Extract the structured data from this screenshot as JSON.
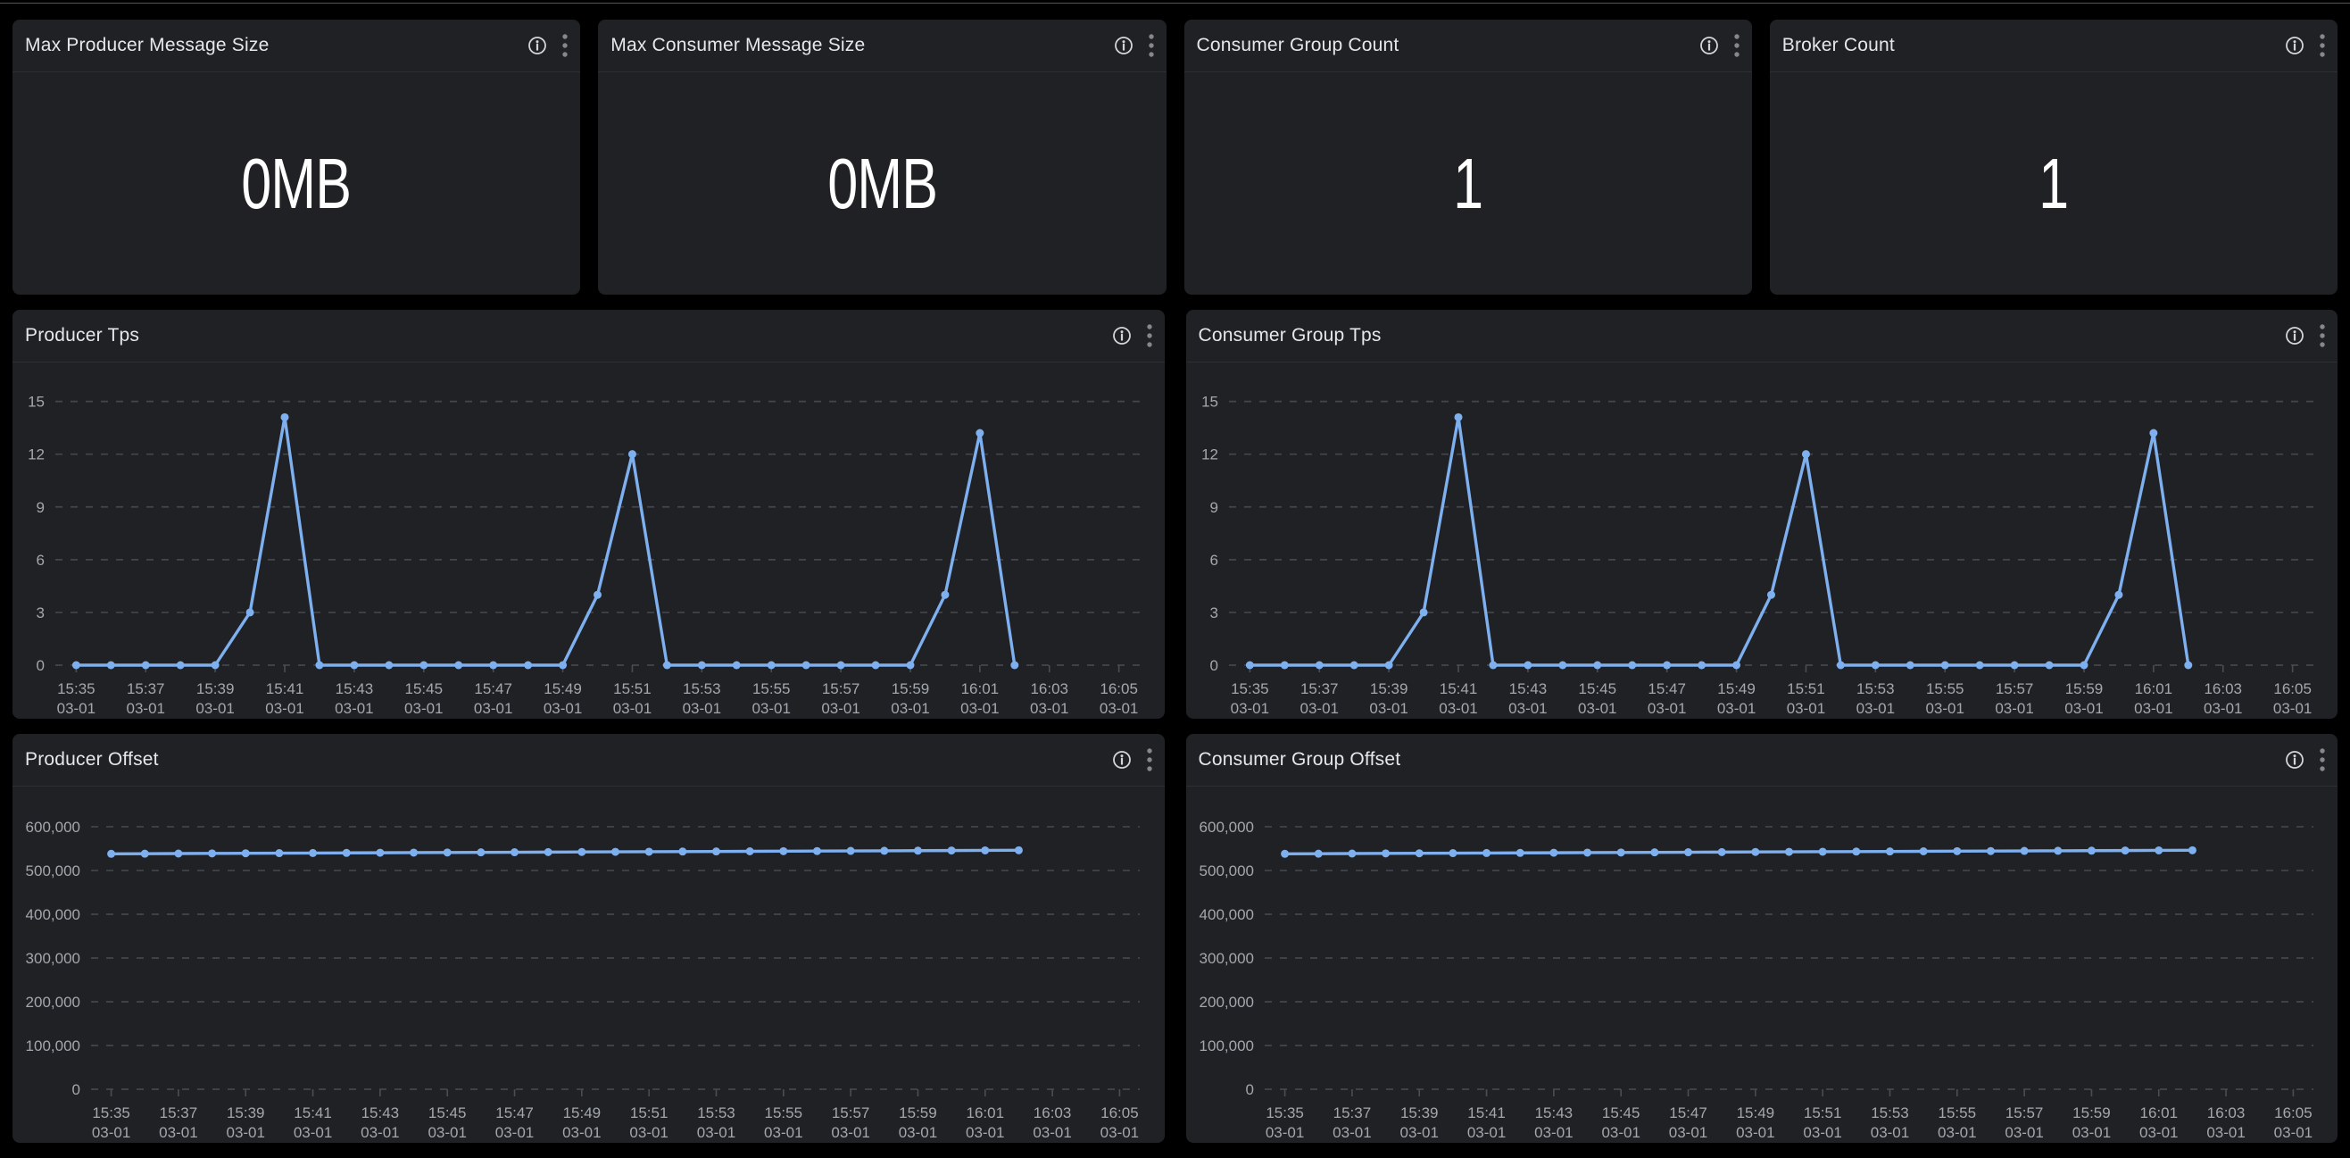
{
  "colors": {
    "page_background": "#000000",
    "panel_background": "#1f2125",
    "panel_divider": "#2c2f34",
    "top_rule": "#52555a",
    "title_text": "#e6e7e9",
    "stat_text": "#ffffff",
    "axis_text": "#a3a7ac",
    "gridline": "#43464b",
    "tick_mark": "#4a4d52",
    "series_blue": "#7EB0F0",
    "info_icon": "#d4d5d7",
    "kebab_icon": "#84878c"
  },
  "icons": {
    "info": "info-circle-icon",
    "menu": "kebab-vertical-menu-icon"
  },
  "panels": [
    {
      "title": "Max Producer Message Size",
      "value": "0MB"
    },
    {
      "title": "Max Consumer Message Size",
      "value": "0MB"
    },
    {
      "title": "Consumer Group Count",
      "value": "1"
    },
    {
      "title": "Broker Count",
      "value": "1"
    },
    {
      "title": "Producer Tps"
    },
    {
      "title": "Consumer Group Tps"
    },
    {
      "title": "Producer Offset"
    },
    {
      "title": "Consumer Group Offset"
    }
  ],
  "chart_data": [
    {
      "type": "line",
      "title": "Producer Tps",
      "legend": "none",
      "grid": "dashed-horizontal",
      "x_start": "15:35",
      "x_interval_minutes": 1,
      "series": [
        {
          "name": "producer-tps",
          "color": "#7EB0F0",
          "values": [
            0,
            0,
            0,
            0,
            0,
            3,
            14.1,
            0,
            0,
            0,
            0,
            0,
            0,
            0,
            0,
            4,
            12,
            0,
            0,
            0,
            0,
            0,
            0,
            0,
            0,
            4,
            13.2,
            0
          ]
        }
      ],
      "ylim": [
        0,
        16.3
      ],
      "yticks": [
        0,
        3,
        6,
        9,
        12,
        15
      ],
      "ytick_labels": [
        "0",
        "3",
        "6",
        "9",
        "12",
        "15"
      ],
      "x_domain_minutes": [
        -0.6,
        30.6
      ],
      "x_tick_minutes": [
        0,
        2,
        4,
        6,
        8,
        10,
        12,
        14,
        16,
        18,
        20,
        22,
        24,
        26,
        28,
        30
      ],
      "x_tick_labels": [
        {
          "time": "15:35",
          "date": "03-01"
        },
        {
          "time": "15:37",
          "date": "03-01"
        },
        {
          "time": "15:39",
          "date": "03-01"
        },
        {
          "time": "15:41",
          "date": "03-01"
        },
        {
          "time": "15:43",
          "date": "03-01"
        },
        {
          "time": "15:45",
          "date": "03-01"
        },
        {
          "time": "15:47",
          "date": "03-01"
        },
        {
          "time": "15:49",
          "date": "03-01"
        },
        {
          "time": "15:51",
          "date": "03-01"
        },
        {
          "time": "15:53",
          "date": "03-01"
        },
        {
          "time": "15:55",
          "date": "03-01"
        },
        {
          "time": "15:57",
          "date": "03-01"
        },
        {
          "time": "15:59",
          "date": "03-01"
        },
        {
          "time": "16:01",
          "date": "03-01"
        },
        {
          "time": "16:03",
          "date": "03-01"
        },
        {
          "time": "16:05",
          "date": "03-01"
        }
      ],
      "left_margin": 48
    },
    {
      "type": "line",
      "title": "Consumer Group Tps",
      "legend": "none",
      "grid": "dashed-horizontal",
      "x_start": "15:35",
      "x_interval_minutes": 1,
      "series": [
        {
          "name": "consumer-group-tps",
          "color": "#7EB0F0",
          "values": [
            0,
            0,
            0,
            0,
            0,
            3,
            14.1,
            0,
            0,
            0,
            0,
            0,
            0,
            0,
            0,
            4,
            12,
            0,
            0,
            0,
            0,
            0,
            0,
            0,
            0,
            4,
            13.2,
            0
          ]
        }
      ],
      "ylim": [
        0,
        16.3
      ],
      "yticks": [
        0,
        3,
        6,
        9,
        12,
        15
      ],
      "ytick_labels": [
        "0",
        "3",
        "6",
        "9",
        "12",
        "15"
      ],
      "x_domain_minutes": [
        -0.6,
        30.6
      ],
      "x_tick_minutes": [
        0,
        2,
        4,
        6,
        8,
        10,
        12,
        14,
        16,
        18,
        20,
        22,
        24,
        26,
        28,
        30
      ],
      "x_tick_labels": [
        {
          "time": "15:35",
          "date": "03-01"
        },
        {
          "time": "15:37",
          "date": "03-01"
        },
        {
          "time": "15:39",
          "date": "03-01"
        },
        {
          "time": "15:41",
          "date": "03-01"
        },
        {
          "time": "15:43",
          "date": "03-01"
        },
        {
          "time": "15:45",
          "date": "03-01"
        },
        {
          "time": "15:47",
          "date": "03-01"
        },
        {
          "time": "15:49",
          "date": "03-01"
        },
        {
          "time": "15:51",
          "date": "03-01"
        },
        {
          "time": "15:53",
          "date": "03-01"
        },
        {
          "time": "15:55",
          "date": "03-01"
        },
        {
          "time": "15:57",
          "date": "03-01"
        },
        {
          "time": "15:59",
          "date": "03-01"
        },
        {
          "time": "16:01",
          "date": "03-01"
        },
        {
          "time": "16:03",
          "date": "03-01"
        },
        {
          "time": "16:05",
          "date": "03-01"
        }
      ],
      "left_margin": 48
    },
    {
      "type": "line",
      "title": "Producer Offset",
      "legend": "none",
      "grid": "dashed-horizontal",
      "x_start": "15:35",
      "x_interval_minutes": 1,
      "series": [
        {
          "name": "producer-offset",
          "color": "#7EB0F0",
          "values": [
            538100,
            538400,
            538700,
            539000,
            539300,
            539600,
            539900,
            540200,
            540500,
            540800,
            541100,
            541400,
            541700,
            542000,
            542300,
            542600,
            542900,
            543200,
            543500,
            543800,
            544100,
            544400,
            544700,
            545000,
            545300,
            545600,
            545900,
            546200
          ]
        }
      ],
      "ylim": [
        0,
        655000
      ],
      "yticks": [
        0,
        100000,
        200000,
        300000,
        400000,
        500000,
        600000
      ],
      "ytick_labels": [
        "0",
        "100,000",
        "200,000",
        "300,000",
        "400,000",
        "500,000",
        "600,000"
      ],
      "x_domain_minutes": [
        -0.6,
        30.6
      ],
      "x_tick_minutes": [
        0,
        2,
        4,
        6,
        8,
        10,
        12,
        14,
        16,
        18,
        20,
        22,
        24,
        26,
        28,
        30
      ],
      "x_tick_labels": [
        {
          "time": "15:35",
          "date": "03-01"
        },
        {
          "time": "15:37",
          "date": "03-01"
        },
        {
          "time": "15:39",
          "date": "03-01"
        },
        {
          "time": "15:41",
          "date": "03-01"
        },
        {
          "time": "15:43",
          "date": "03-01"
        },
        {
          "time": "15:45",
          "date": "03-01"
        },
        {
          "time": "15:47",
          "date": "03-01"
        },
        {
          "time": "15:49",
          "date": "03-01"
        },
        {
          "time": "15:51",
          "date": "03-01"
        },
        {
          "time": "15:53",
          "date": "03-01"
        },
        {
          "time": "15:55",
          "date": "03-01"
        },
        {
          "time": "15:57",
          "date": "03-01"
        },
        {
          "time": "15:59",
          "date": "03-01"
        },
        {
          "time": "16:01",
          "date": "03-01"
        },
        {
          "time": "16:03",
          "date": "03-01"
        },
        {
          "time": "16:05",
          "date": "03-01"
        }
      ],
      "left_margin": 88
    },
    {
      "type": "line",
      "title": "Consumer Group Offset",
      "legend": "none",
      "grid": "dashed-horizontal",
      "x_start": "15:35",
      "x_interval_minutes": 1,
      "series": [
        {
          "name": "consumer-group-offset",
          "color": "#7EB0F0",
          "values": [
            538100,
            538400,
            538700,
            539000,
            539300,
            539600,
            539900,
            540200,
            540500,
            540800,
            541100,
            541400,
            541700,
            542000,
            542300,
            542600,
            542900,
            543200,
            543500,
            543800,
            544100,
            544400,
            544700,
            545000,
            545300,
            545600,
            545900,
            546200
          ]
        }
      ],
      "ylim": [
        0,
        655000
      ],
      "yticks": [
        0,
        100000,
        200000,
        300000,
        400000,
        500000,
        600000
      ],
      "ytick_labels": [
        "0",
        "100,000",
        "200,000",
        "300,000",
        "400,000",
        "500,000",
        "600,000"
      ],
      "x_domain_minutes": [
        -0.6,
        30.6
      ],
      "x_tick_minutes": [
        0,
        2,
        4,
        6,
        8,
        10,
        12,
        14,
        16,
        18,
        20,
        22,
        24,
        26,
        28,
        30
      ],
      "x_tick_labels": [
        {
          "time": "15:35",
          "date": "03-01"
        },
        {
          "time": "15:37",
          "date": "03-01"
        },
        {
          "time": "15:39",
          "date": "03-01"
        },
        {
          "time": "15:41",
          "date": "03-01"
        },
        {
          "time": "15:43",
          "date": "03-01"
        },
        {
          "time": "15:45",
          "date": "03-01"
        },
        {
          "time": "15:47",
          "date": "03-01"
        },
        {
          "time": "15:49",
          "date": "03-01"
        },
        {
          "time": "15:51",
          "date": "03-01"
        },
        {
          "time": "15:53",
          "date": "03-01"
        },
        {
          "time": "15:55",
          "date": "03-01"
        },
        {
          "time": "15:57",
          "date": "03-01"
        },
        {
          "time": "15:59",
          "date": "03-01"
        },
        {
          "time": "16:01",
          "date": "03-01"
        },
        {
          "time": "16:03",
          "date": "03-01"
        },
        {
          "time": "16:05",
          "date": "03-01"
        }
      ],
      "left_margin": 88
    }
  ]
}
